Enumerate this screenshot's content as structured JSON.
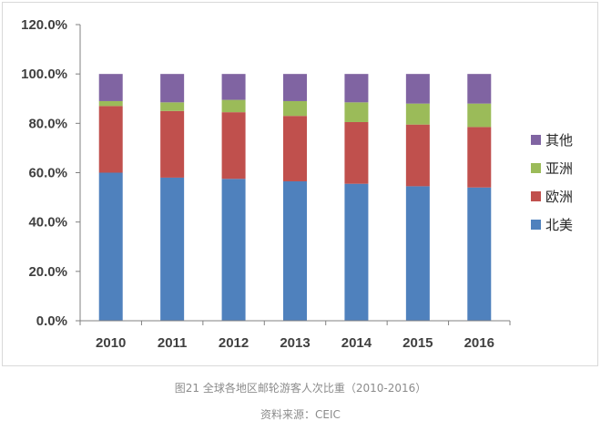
{
  "chart_data": {
    "type": "bar",
    "stacked": true,
    "categories": [
      "2010",
      "2011",
      "2012",
      "2013",
      "2014",
      "2015",
      "2016"
    ],
    "series": [
      {
        "name": "北美",
        "color": "#4f81bd",
        "values": [
          60.0,
          58.0,
          57.5,
          56.5,
          55.5,
          54.5,
          54.0
        ]
      },
      {
        "name": "欧洲",
        "color": "#c0504d",
        "values": [
          27.0,
          27.0,
          27.0,
          26.5,
          25.0,
          25.0,
          24.5
        ]
      },
      {
        "name": "亚洲",
        "color": "#9bbb59",
        "values": [
          2.0,
          3.5,
          5.0,
          6.0,
          8.0,
          8.5,
          9.5
        ]
      },
      {
        "name": "其他",
        "color": "#8064a2",
        "values": [
          11.0,
          11.5,
          10.5,
          11.0,
          11.5,
          12.0,
          12.0
        ]
      }
    ],
    "ylim": [
      0,
      120
    ],
    "y_ticks": [
      "0.0%",
      "20.0%",
      "40.0%",
      "60.0%",
      "80.0%",
      "100.0%",
      "120.0%"
    ],
    "grid": false,
    "legend_position": "right",
    "legend_order": [
      "其他",
      "亚洲",
      "欧洲",
      "北美"
    ],
    "title": "",
    "xlabel": "",
    "ylabel": ""
  },
  "caption": {
    "figure_title": "图21 全球各地区邮轮游客人次比重（2010-2016）",
    "source": "资料来源：CEIC"
  }
}
